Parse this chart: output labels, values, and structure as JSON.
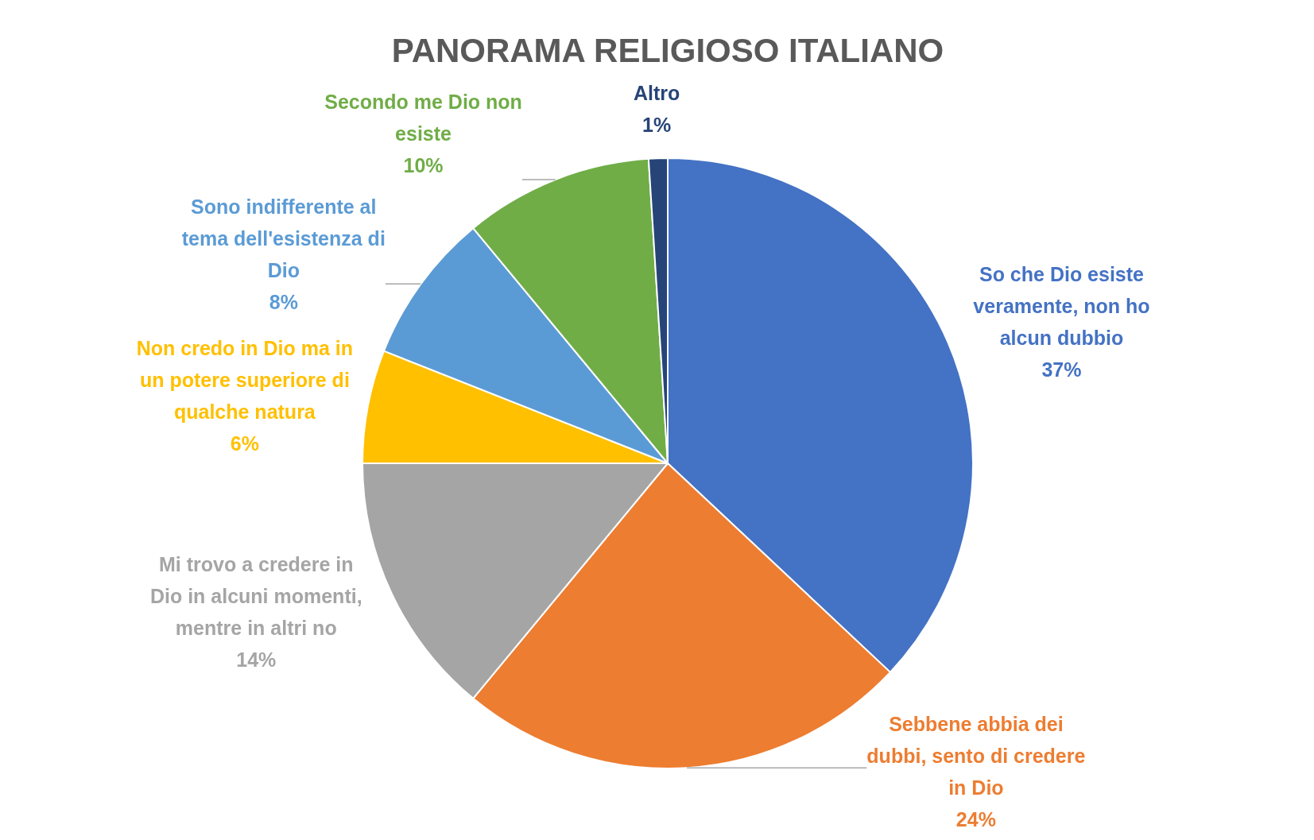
{
  "chart_data": {
    "type": "pie",
    "title": "PANORAMA RELIGIOSO ITALIANO",
    "categories": [
      "So che Dio esiste veramente, non ho alcun dubbio",
      "Sebbene abbia dei dubbi, sento di credere in Dio",
      "Mi trovo a credere in Dio in alcuni momenti, mentre in altri no",
      "Non credo in Dio ma in un potere superiore di qualche natura",
      "Sono indifferente al tema dell'esistenza di Dio",
      "Secondo me Dio non esiste",
      "Altro"
    ],
    "values": [
      37,
      24,
      14,
      6,
      8,
      10,
      1
    ],
    "colors": [
      "#4472c4",
      "#ed7d31",
      "#a5a5a5",
      "#ffc000",
      "#5b9bd5",
      "#70ad47",
      "#264478"
    ],
    "value_labels": [
      "37%",
      "24%",
      "14%",
      "6%",
      "8%",
      "10%",
      "1%"
    ],
    "legend": false
  }
}
